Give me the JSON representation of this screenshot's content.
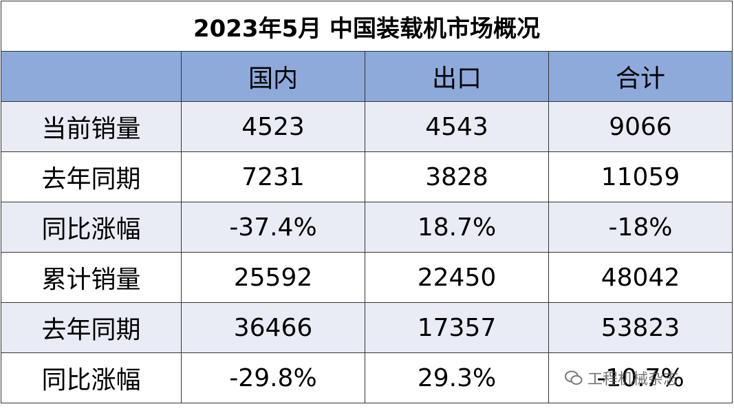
{
  "table": {
    "title": "2023年5月 中国装载机市场概况",
    "header": [
      "",
      "国内",
      "出口",
      "合计"
    ],
    "rows": [
      [
        "当前销量",
        "4523",
        "4543",
        "9066"
      ],
      [
        "去年同期",
        "7231",
        "3828",
        "11059"
      ],
      [
        "同比涨幅",
        "-37.4%",
        "18.7%",
        "-18%"
      ],
      [
        "累计销量",
        "25592",
        "22450",
        "48042"
      ],
      [
        "去年同期",
        "36466",
        "17357",
        "53823"
      ],
      [
        "同比涨幅",
        "-29.8%",
        "29.3%",
        "-10.7%"
      ]
    ]
  },
  "watermark": "工程机械杂志"
}
